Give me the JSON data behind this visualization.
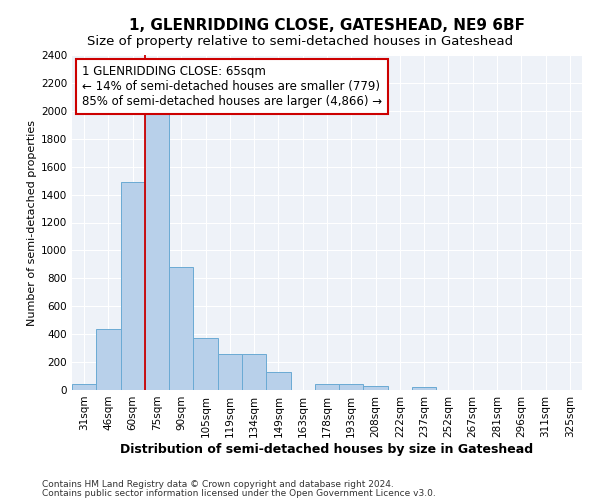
{
  "title": "1, GLENRIDDING CLOSE, GATESHEAD, NE9 6BF",
  "subtitle": "Size of property relative to semi-detached houses in Gateshead",
  "xlabel": "Distribution of semi-detached houses by size in Gateshead",
  "ylabel": "Number of semi-detached properties",
  "footer_line1": "Contains HM Land Registry data © Crown copyright and database right 2024.",
  "footer_line2": "Contains public sector information licensed under the Open Government Licence v3.0.",
  "categories": [
    "31sqm",
    "46sqm",
    "60sqm",
    "75sqm",
    "90sqm",
    "105sqm",
    "119sqm",
    "134sqm",
    "149sqm",
    "163sqm",
    "178sqm",
    "193sqm",
    "208sqm",
    "222sqm",
    "237sqm",
    "252sqm",
    "267sqm",
    "281sqm",
    "296sqm",
    "311sqm",
    "325sqm"
  ],
  "values": [
    45,
    440,
    1490,
    2000,
    880,
    375,
    260,
    260,
    130,
    0,
    40,
    40,
    30,
    0,
    25,
    0,
    0,
    0,
    0,
    0,
    0
  ],
  "bar_color": "#b8d0ea",
  "bar_edge_color": "#6aaad4",
  "ylim": [
    0,
    2400
  ],
  "yticks": [
    0,
    200,
    400,
    600,
    800,
    1000,
    1200,
    1400,
    1600,
    1800,
    2000,
    2200,
    2400
  ],
  "red_line_x": 2.5,
  "annotation_title": "1 GLENRIDDING CLOSE: 65sqm",
  "annotation_line1": "← 14% of semi-detached houses are smaller (779)",
  "annotation_line2": "85% of semi-detached houses are larger (4,866) →",
  "annotation_box_color": "#ffffff",
  "annotation_border_color": "#cc0000",
  "red_line_color": "#cc0000",
  "bg_color": "#eef2f8",
  "grid_color": "#ffffff",
  "title_fontsize": 11,
  "subtitle_fontsize": 9.5,
  "annot_fontsize": 8.5,
  "ylabel_fontsize": 8,
  "xlabel_fontsize": 9,
  "tick_fontsize": 7.5,
  "footer_fontsize": 6.5
}
